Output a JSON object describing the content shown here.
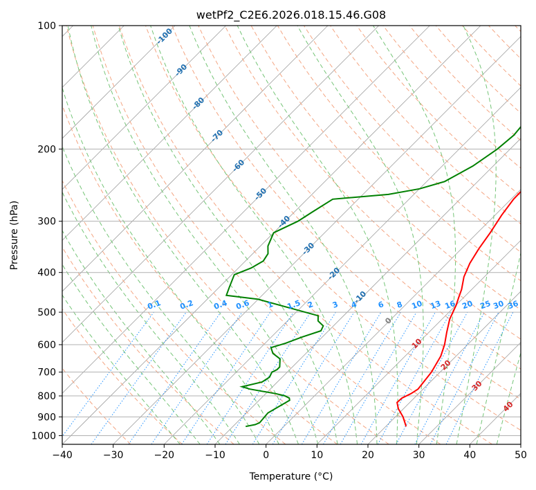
{
  "chart_data": {
    "type": "line",
    "title": "wetPf2_C2E6.2026.018.15.46.G08",
    "xlabel": "Temperature (°C)",
    "ylabel": "Pressure (hPa)",
    "xlim": [
      -40,
      50
    ],
    "ylim": [
      1050,
      100
    ],
    "y_scale": "log",
    "grid": true,
    "x_ticks": [
      -40,
      -30,
      -20,
      -10,
      0,
      10,
      20,
      30,
      40,
      50
    ],
    "y_ticks": [
      100,
      200,
      300,
      400,
      500,
      600,
      700,
      800,
      900,
      1000
    ],
    "series": [
      {
        "color": "#ff0000",
        "x": [
          24.0,
          21.5,
          19.0,
          17.5,
          17.6,
          18.5,
          19.0,
          18.7,
          18.3,
          17.0,
          15.5,
          13.5,
          11.5,
          10.0,
          9.0,
          8.0,
          6.0,
          4.5,
          3.4,
          2.5,
          1.3,
          0.5,
          0.4,
          0.9,
          1.2,
          1.4,
          1.0,
          0.3,
          -0.5,
          0.0,
          2.0,
          5.0,
          7.5,
          8.5,
          8.6,
          8.4,
          8.3,
          8.2,
          8.1
        ],
        "y": [
          950,
          900,
          860,
          830,
          810,
          790,
          770,
          740,
          700,
          640,
          600,
          560,
          520,
          480,
          460,
          440,
          410,
          380,
          350,
          320,
          290,
          265,
          250,
          235,
          220,
          205,
          195,
          185,
          175,
          165,
          155,
          148,
          140,
          130,
          120,
          110,
          103,
          100,
          100
        ]
      },
      {
        "color": "#008000",
        "x": [
          -7.5,
          -6.0,
          -5.5,
          -5.8,
          -5.2,
          -4.0,
          -4.5,
          -5.8,
          -8.0,
          -14.0,
          -16.0,
          -13.0,
          -12.5,
          -13.0,
          -12.5,
          -12.5,
          -14.0,
          -16.5,
          -18.0,
          -16.0,
          -14.0,
          -11.5,
          -12.0,
          -14.0,
          -15.0,
          -30.0,
          -37.0,
          -38.0,
          -39.5,
          -37.5,
          -36.5,
          -37.0,
          -38.5,
          -40.0,
          -37.5,
          -36.5,
          -35.0,
          -25.0,
          -20.0,
          -16.5,
          -14.0,
          -12.5,
          -12.0,
          -12.5,
          -13.5,
          -14.5,
          -13.0,
          -10.0,
          -6.0,
          -3.0,
          -1.0,
          0.5
        ],
        "y": [
          950,
          940,
          930,
          880,
          860,
          820,
          810,
          800,
          790,
          770,
          760,
          740,
          720,
          700,
          690,
          680,
          650,
          630,
          610,
          595,
          575,
          555,
          540,
          525,
          510,
          465,
          455,
          435,
          405,
          390,
          375,
          360,
          345,
          320,
          300,
          285,
          265,
          258,
          250,
          240,
          220,
          200,
          185,
          170,
          158,
          145,
          135,
          125,
          115,
          108,
          102,
          100
        ]
      }
    ],
    "isotherm_skew_deg": 45,
    "background_lines": {
      "dry_adiabats_color": "#f4a582",
      "moist_adiabats_color": "#74c476",
      "mixing_ratio_color": "#1e90ff",
      "isotherm_color": "#a0a0a0"
    },
    "moist_adiabat_labels": [
      "-100",
      "-90",
      "-80",
      "-70",
      "-60",
      "-50",
      "-40",
      "-30",
      "-20",
      "-10"
    ],
    "mixing_ratio_labels": [
      "0.1",
      "0.2",
      "0.4",
      "0.6",
      "1",
      "1.5",
      "2",
      "3",
      "4",
      "6",
      "8",
      "10",
      "13",
      "16",
      "20",
      "25",
      "30",
      "36"
    ],
    "isotherm_labels": [
      "0",
      "10",
      "20",
      "30",
      "40"
    ]
  }
}
